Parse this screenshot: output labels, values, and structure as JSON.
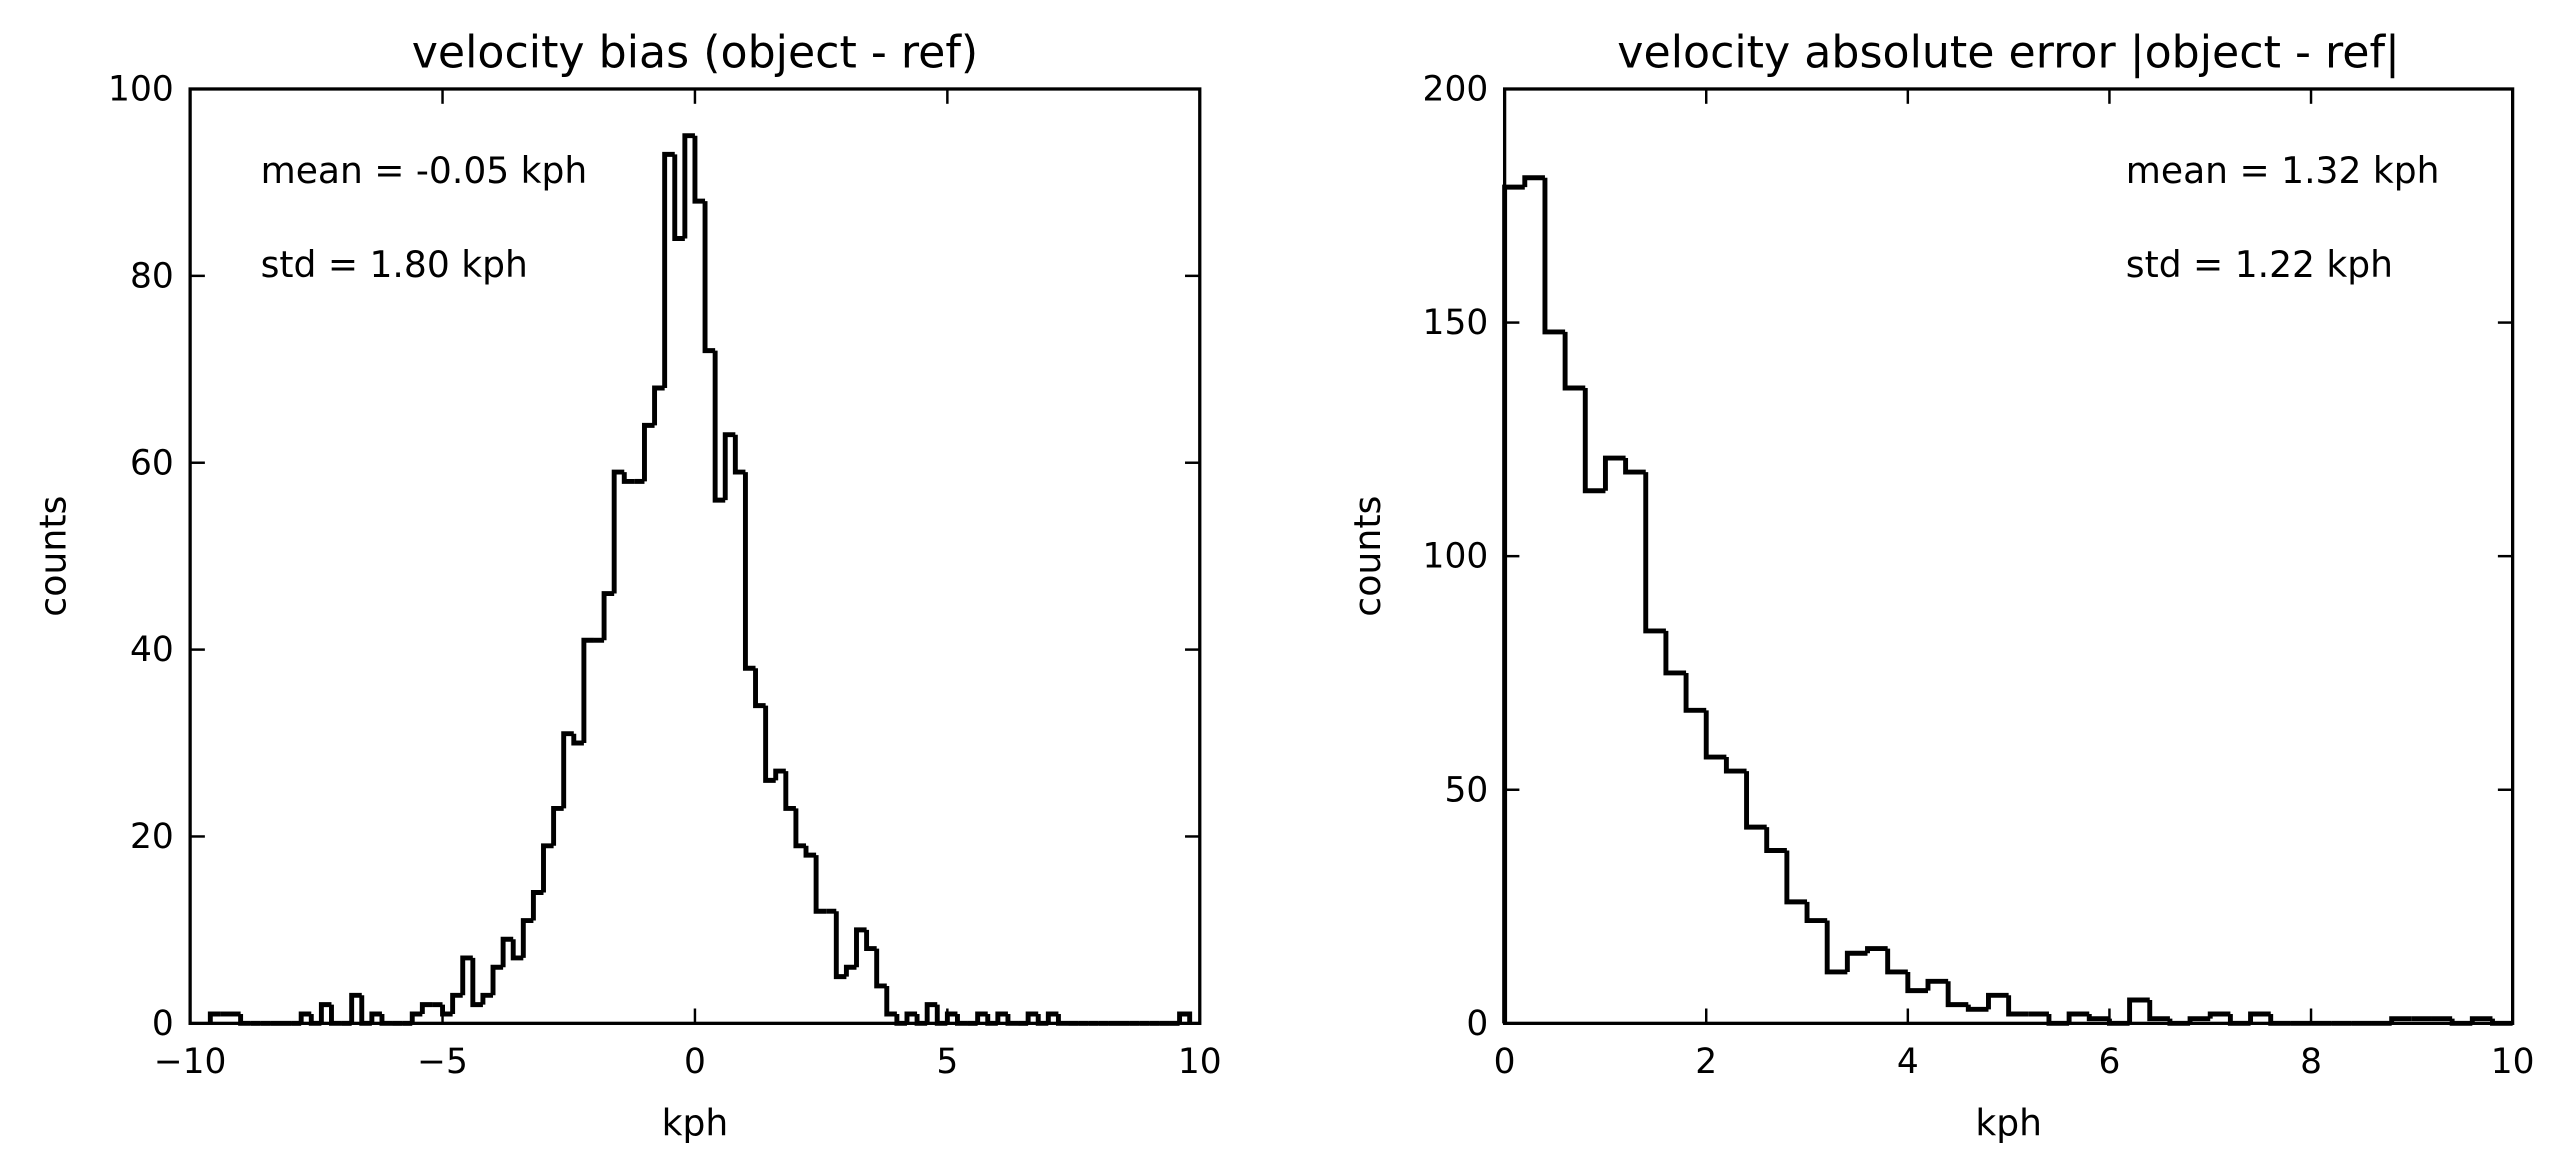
{
  "chart_data": [
    {
      "type": "histogram",
      "title": "velocity bias (object - ref)",
      "xlabel": "kph",
      "ylabel": "counts",
      "annotations": [
        "mean = -0.05 kph",
        "std = 1.80 kph"
      ],
      "annotation_corner": "upper left",
      "color": "#000000",
      "bins": [
        -9.6,
        -9.4,
        -9.2,
        -9,
        -8.8,
        -8.6,
        -8.4,
        -8.2,
        -8,
        -7.8,
        -7.6,
        -7.4,
        -7.2,
        -7,
        -6.8,
        -6.6,
        -6.4,
        -6.2,
        -6,
        -5.8,
        -5.6,
        -5.4,
        -5.2,
        -5,
        -4.8,
        -4.6,
        -4.4,
        -4.2,
        -4,
        -3.8,
        -3.6,
        -3.4,
        -3.2,
        -3,
        -2.8,
        -2.6,
        -2.4,
        -2.2,
        -2,
        -1.8,
        -1.6,
        -1.4,
        -1.2,
        -1,
        -0.8,
        -0.6,
        -0.4,
        -0.2,
        0,
        0.2,
        0.4,
        0.6,
        0.8,
        1,
        1.2,
        1.4,
        1.6,
        1.8,
        2,
        2.2,
        2.4,
        2.6,
        2.8,
        3,
        3.2,
        3.4,
        3.6,
        3.8,
        4,
        4.2,
        4.4,
        4.6,
        4.8,
        5,
        5.2,
        5.4,
        5.6,
        5.8,
        6,
        6.2,
        6.4,
        6.6,
        6.8,
        7,
        7.2,
        7.4,
        7.6,
        7.8,
        8,
        8.2,
        8.4,
        8.6,
        8.8,
        9,
        9.2,
        9.4,
        9.6,
        9.8
      ],
      "counts": [
        1,
        1,
        1,
        0,
        0,
        0,
        0,
        0,
        0,
        1,
        0,
        2,
        0,
        0,
        3,
        0,
        1,
        0,
        0,
        0,
        1,
        2,
        2,
        1,
        3,
        7,
        2,
        3,
        6,
        9,
        7,
        11,
        14,
        19,
        23,
        31,
        30,
        41,
        41,
        46,
        59,
        58,
        58,
        64,
        68,
        93,
        84,
        95,
        88,
        72,
        56,
        63,
        59,
        38,
        34,
        26,
        27,
        23,
        19,
        18,
        12,
        12,
        5,
        6,
        10,
        8,
        4,
        1,
        0,
        1,
        0,
        2,
        0,
        1,
        0,
        0,
        1,
        0,
        1,
        0,
        0,
        1,
        0,
        1,
        0,
        0,
        0,
        0,
        0,
        0,
        0,
        0,
        0,
        0,
        0,
        0,
        1
      ],
      "xlim": [
        -10,
        10
      ],
      "ylim": [
        0,
        100
      ],
      "xticks": [
        {
          "value": -10,
          "label": "−10"
        },
        {
          "value": -5,
          "label": "−5"
        },
        0,
        5,
        10
      ],
      "yticks": [
        0,
        20,
        40,
        60,
        80,
        100
      ]
    },
    {
      "type": "histogram",
      "title": "velocity absolute error |object - ref|",
      "xlabel": "kph",
      "ylabel": "counts",
      "annotations": [
        "mean = 1.32 kph",
        "std = 1.22 kph"
      ],
      "annotation_corner": "upper right",
      "color": "#000000",
      "bins": [
        0,
        0.2,
        0.4,
        0.6,
        0.8,
        1,
        1.2,
        1.4,
        1.6,
        1.8,
        2,
        2.2,
        2.4,
        2.6,
        2.8,
        3,
        3.2,
        3.4,
        3.6,
        3.8,
        4,
        4.2,
        4.4,
        4.6,
        4.8,
        5,
        5.2,
        5.4,
        5.6,
        5.8,
        6,
        6.2,
        6.4,
        6.6,
        6.8,
        7,
        7.2,
        7.4,
        7.6,
        7.8,
        8,
        8.2,
        8.4,
        8.6,
        8.8,
        9,
        9.2,
        9.4,
        9.6,
        9.8,
        10
      ],
      "counts": [
        179,
        181,
        148,
        136,
        114,
        121,
        118,
        84,
        75,
        67,
        57,
        54,
        42,
        37,
        26,
        22,
        11,
        15,
        16,
        11,
        7,
        9,
        4,
        3,
        6,
        2,
        2,
        0,
        2,
        1,
        0,
        5,
        1,
        0,
        1,
        2,
        0,
        2,
        0,
        0,
        0,
        0,
        0,
        0,
        1,
        1,
        1,
        0,
        1,
        0
      ],
      "xlim": [
        0,
        10
      ],
      "ylim": [
        0,
        200
      ],
      "xticks": [
        0,
        2,
        4,
        6,
        8,
        10
      ],
      "yticks": [
        0,
        50,
        100,
        150,
        200
      ]
    }
  ]
}
